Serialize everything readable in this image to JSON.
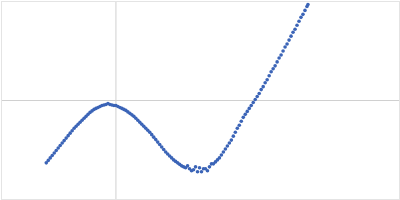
{
  "chart_data": {
    "type": "scatter",
    "x": [
      -0.7,
      -0.68,
      -0.66,
      -0.64,
      -0.62,
      -0.6,
      -0.58,
      -0.56,
      -0.54,
      -0.52,
      -0.5,
      -0.48,
      -0.46,
      -0.44,
      -0.42,
      -0.4,
      -0.38,
      -0.36,
      -0.34,
      -0.32,
      -0.3,
      -0.28,
      -0.26,
      -0.24,
      -0.22,
      -0.2,
      -0.18,
      -0.16,
      -0.14,
      -0.12,
      -0.1,
      -0.08,
      -0.06,
      -0.04,
      -0.02,
      0.0,
      0.02,
      0.04,
      0.06,
      0.08,
      0.1,
      0.12,
      0.14,
      0.16,
      0.18,
      0.2,
      0.22,
      0.24,
      0.26,
      0.28,
      0.3,
      0.32,
      0.34,
      0.36,
      0.38,
      0.4,
      0.42,
      0.44,
      0.46,
      0.48,
      0.5,
      0.52,
      0.54,
      0.56,
      0.58,
      0.6,
      0.62,
      0.64,
      0.66,
      0.68,
      0.7,
      0.72,
      0.74,
      0.76,
      0.78,
      0.8,
      0.82,
      0.84,
      0.86,
      0.88,
      0.9,
      0.92,
      0.94,
      0.96,
      0.98,
      1.0,
      1.02,
      1.04,
      1.06,
      1.08,
      1.1,
      1.12,
      1.14,
      1.16,
      1.18,
      1.2,
      1.22,
      1.24,
      1.26,
      1.28,
      1.3,
      1.32,
      1.34,
      1.36,
      1.38,
      1.4,
      1.42,
      1.44,
      1.46,
      1.48,
      1.5,
      1.52,
      1.54,
      1.56,
      1.58,
      1.6,
      1.62,
      1.64,
      1.66,
      1.68,
      1.7,
      1.72,
      1.74,
      1.76,
      1.78,
      1.8,
      1.82,
      1.84,
      1.86,
      1.88,
      1.9,
      1.92,
      1.93
    ],
    "values": [
      -0.63,
      -0.605,
      -0.58,
      -0.555,
      -0.53,
      -0.505,
      -0.48,
      -0.455,
      -0.43,
      -0.405,
      -0.38,
      -0.355,
      -0.33,
      -0.305,
      -0.28,
      -0.26,
      -0.24,
      -0.22,
      -0.2,
      -0.18,
      -0.16,
      -0.14,
      -0.12,
      -0.105,
      -0.09,
      -0.08,
      -0.07,
      -0.06,
      -0.05,
      -0.045,
      -0.04,
      -0.03,
      -0.04,
      -0.045,
      -0.05,
      -0.05,
      -0.06,
      -0.07,
      -0.08,
      -0.09,
      -0.1,
      -0.115,
      -0.13,
      -0.145,
      -0.16,
      -0.18,
      -0.2,
      -0.22,
      -0.24,
      -0.26,
      -0.28,
      -0.3,
      -0.32,
      -0.345,
      -0.37,
      -0.395,
      -0.42,
      -0.445,
      -0.47,
      -0.495,
      -0.52,
      -0.54,
      -0.56,
      -0.58,
      -0.6,
      -0.615,
      -0.63,
      -0.645,
      -0.66,
      -0.67,
      -0.68,
      -0.66,
      -0.69,
      -0.71,
      -0.7,
      -0.67,
      -0.72,
      -0.68,
      -0.72,
      -0.69,
      -0.69,
      -0.71,
      -0.67,
      -0.64,
      -0.64,
      -0.62,
      -0.6,
      -0.58,
      -0.55,
      -0.52,
      -0.49,
      -0.46,
      -0.43,
      -0.4,
      -0.36,
      -0.32,
      -0.28,
      -0.25,
      -0.21,
      -0.17,
      -0.14,
      -0.11,
      -0.08,
      -0.05,
      -0.02,
      0.01,
      0.04,
      0.07,
      0.11,
      0.14,
      0.18,
      0.21,
      0.25,
      0.29,
      0.32,
      0.35,
      0.39,
      0.43,
      0.46,
      0.5,
      0.54,
      0.57,
      0.61,
      0.65,
      0.69,
      0.72,
      0.76,
      0.8,
      0.84,
      0.87,
      0.91,
      0.95,
      0.97
    ],
    "xlim": [
      -1.15,
      2.85
    ],
    "ylim": [
      -1,
      1
    ],
    "xticks": [
      0
    ],
    "yticks": [
      0
    ],
    "grid": true,
    "tick_labels": false,
    "color": "#3b64b7",
    "marker": "circle"
  }
}
